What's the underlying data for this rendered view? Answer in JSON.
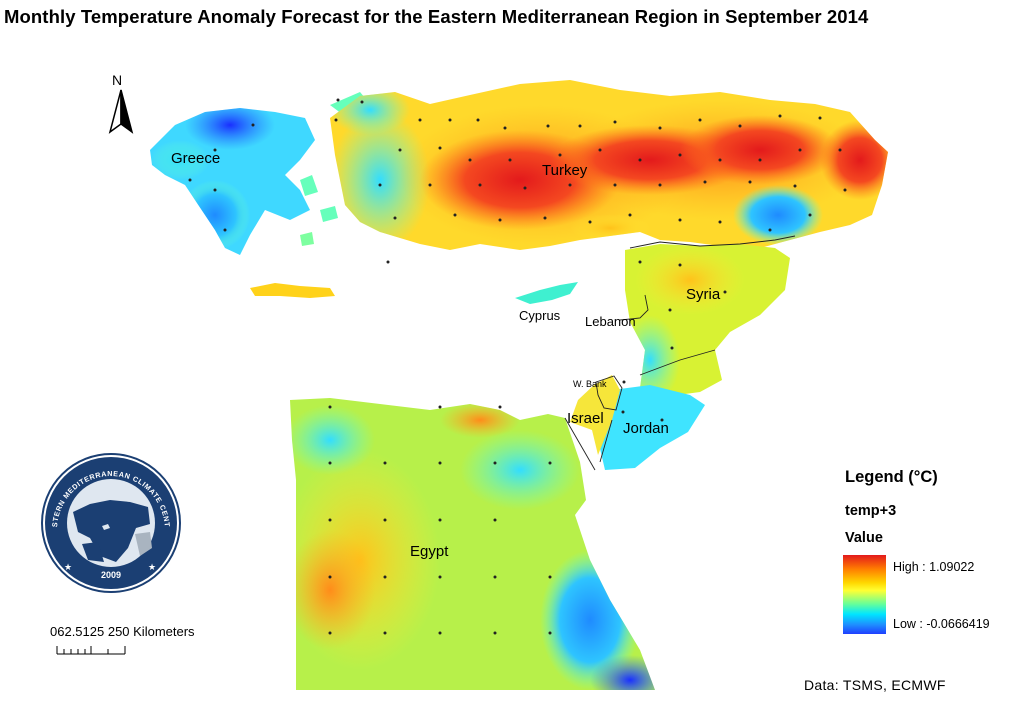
{
  "title": "Monthly Temperature Anomaly Forecast for the Eastern Mediterranean Region in September 2014",
  "north_arrow": {
    "letter": "N"
  },
  "labels": {
    "greece": "Greece",
    "turkey": "Turkey",
    "syria": "Syria",
    "cyprus": "Cyprus",
    "lebanon": "Lebanon",
    "west_bank": "W. Bank",
    "israel": "Israel",
    "jordan": "Jordan",
    "egypt": "Egypt"
  },
  "logo": {
    "name": "EASTERN MEDITERRANEAN CLIMATE CENTRE",
    "year": "2009"
  },
  "scale": {
    "text": "062.5125   250 Kilometers"
  },
  "legend": {
    "title": "Legend (°C)",
    "layer": "temp+3",
    "field": "Value",
    "high_label": "High : 1.09022",
    "low_label": "Low : -0.0666419",
    "high_value": 1.09022,
    "low_value": -0.0666419,
    "high_color": "#e31a1c",
    "low_color": "#1f3fff"
  },
  "credit": "Data:  TSMS, ECMWF"
}
